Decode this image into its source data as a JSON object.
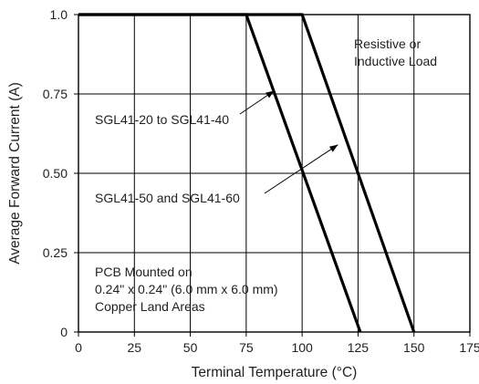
{
  "chart_data": {
    "type": "line",
    "title": "",
    "xlabel": "Terminal Temperature (°C)",
    "ylabel": "Average Forward Current (A)",
    "xlim": [
      0,
      175
    ],
    "ylim": [
      0,
      1.0
    ],
    "x_ticks": [
      0,
      25,
      50,
      75,
      100,
      125,
      150,
      175
    ],
    "x_tick_labels": [
      "0",
      "25",
      "50",
      "75",
      "100",
      "125",
      "150",
      "175"
    ],
    "y_ticks": [
      0,
      0.25,
      0.5,
      0.75,
      1.0
    ],
    "y_tick_labels": [
      "0",
      "0.25",
      "0.50",
      "0.75",
      "1.0"
    ],
    "grid": true,
    "series": [
      {
        "x": [
          0,
          75,
          126
        ],
        "y": [
          1.0,
          1.0,
          0
        ]
      },
      {
        "x": [
          0,
          100,
          150
        ],
        "y": [
          1.0,
          1.0,
          0
        ]
      }
    ],
    "annotations": [
      {
        "lines": [
          "SGL41-20 to SGL41-40"
        ],
        "target": [
          87.5,
          0.76
        ],
        "series_index": 0
      },
      {
        "lines": [
          "SGL41-50 and SGL41-60"
        ],
        "target": [
          116,
          0.59
        ],
        "series_index": 1
      },
      {
        "lines": [
          "Resistive or",
          "Inductive Load"
        ]
      },
      {
        "lines": [
          "PCB Mounted on",
          "0.24\" x 0.24\" (6.0 mm x 6.0 mm)",
          "Copper Land Areas"
        ]
      }
    ]
  }
}
